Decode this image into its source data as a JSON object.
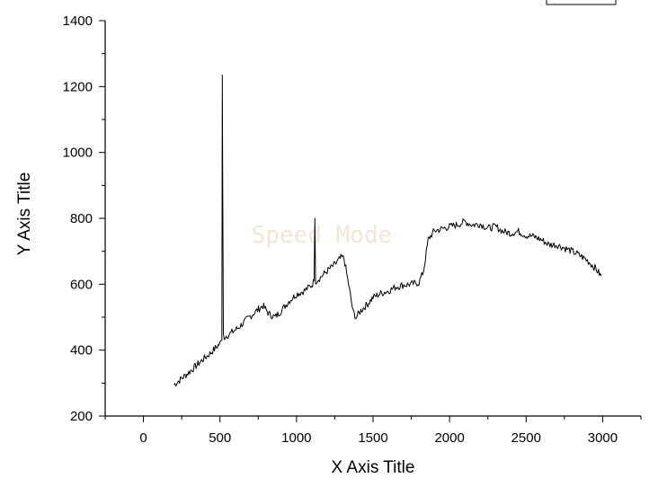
{
  "chart_data": {
    "type": "line",
    "title": "",
    "xlabel": "X Axis Title",
    "ylabel": "Y Axis Title",
    "xlim": [
      -250,
      3250
    ],
    "ylim": [
      200,
      1400
    ],
    "xticks": [
      0,
      500,
      1000,
      1500,
      2000,
      2500,
      3000
    ],
    "yticks": [
      200,
      400,
      600,
      800,
      1000,
      1200,
      1400
    ],
    "grid": false,
    "legend": "top-right",
    "watermark": "Speed Mode",
    "line_color": "#000000",
    "series": [
      {
        "x": [
          200,
          260,
          320,
          380,
          440,
          500,
          512,
          515,
          518,
          522,
          528,
          560,
          620,
          680,
          740,
          780,
          820,
          860,
          900,
          950,
          1000,
          1050,
          1100,
          1115,
          1120,
          1125,
          1150,
          1200,
          1250,
          1290,
          1310,
          1340,
          1370,
          1390,
          1420,
          1460,
          1500,
          1550,
          1600,
          1650,
          1700,
          1750,
          1800,
          1830,
          1860,
          1900,
          1950,
          2000,
          2050,
          2100,
          2150,
          2200,
          2250,
          2300,
          2350,
          2400,
          2450,
          2500,
          2550,
          2600,
          2650,
          2700,
          2750,
          2800,
          2850,
          2900,
          2950,
          2990
        ],
        "y": [
          295,
          318,
          342,
          368,
          392,
          420,
          430,
          1235,
          880,
          450,
          440,
          448,
          468,
          495,
          520,
          535,
          510,
          500,
          520,
          548,
          570,
          580,
          597,
          610,
          800,
          610,
          618,
          640,
          660,
          680,
          680,
          600,
          515,
          500,
          520,
          538,
          560,
          572,
          580,
          592,
          598,
          600,
          605,
          640,
          735,
          762,
          768,
          775,
          780,
          790,
          780,
          783,
          770,
          775,
          760,
          755,
          760,
          748,
          745,
          735,
          720,
          720,
          710,
          700,
          688,
          672,
          650,
          625
        ]
      }
    ]
  }
}
